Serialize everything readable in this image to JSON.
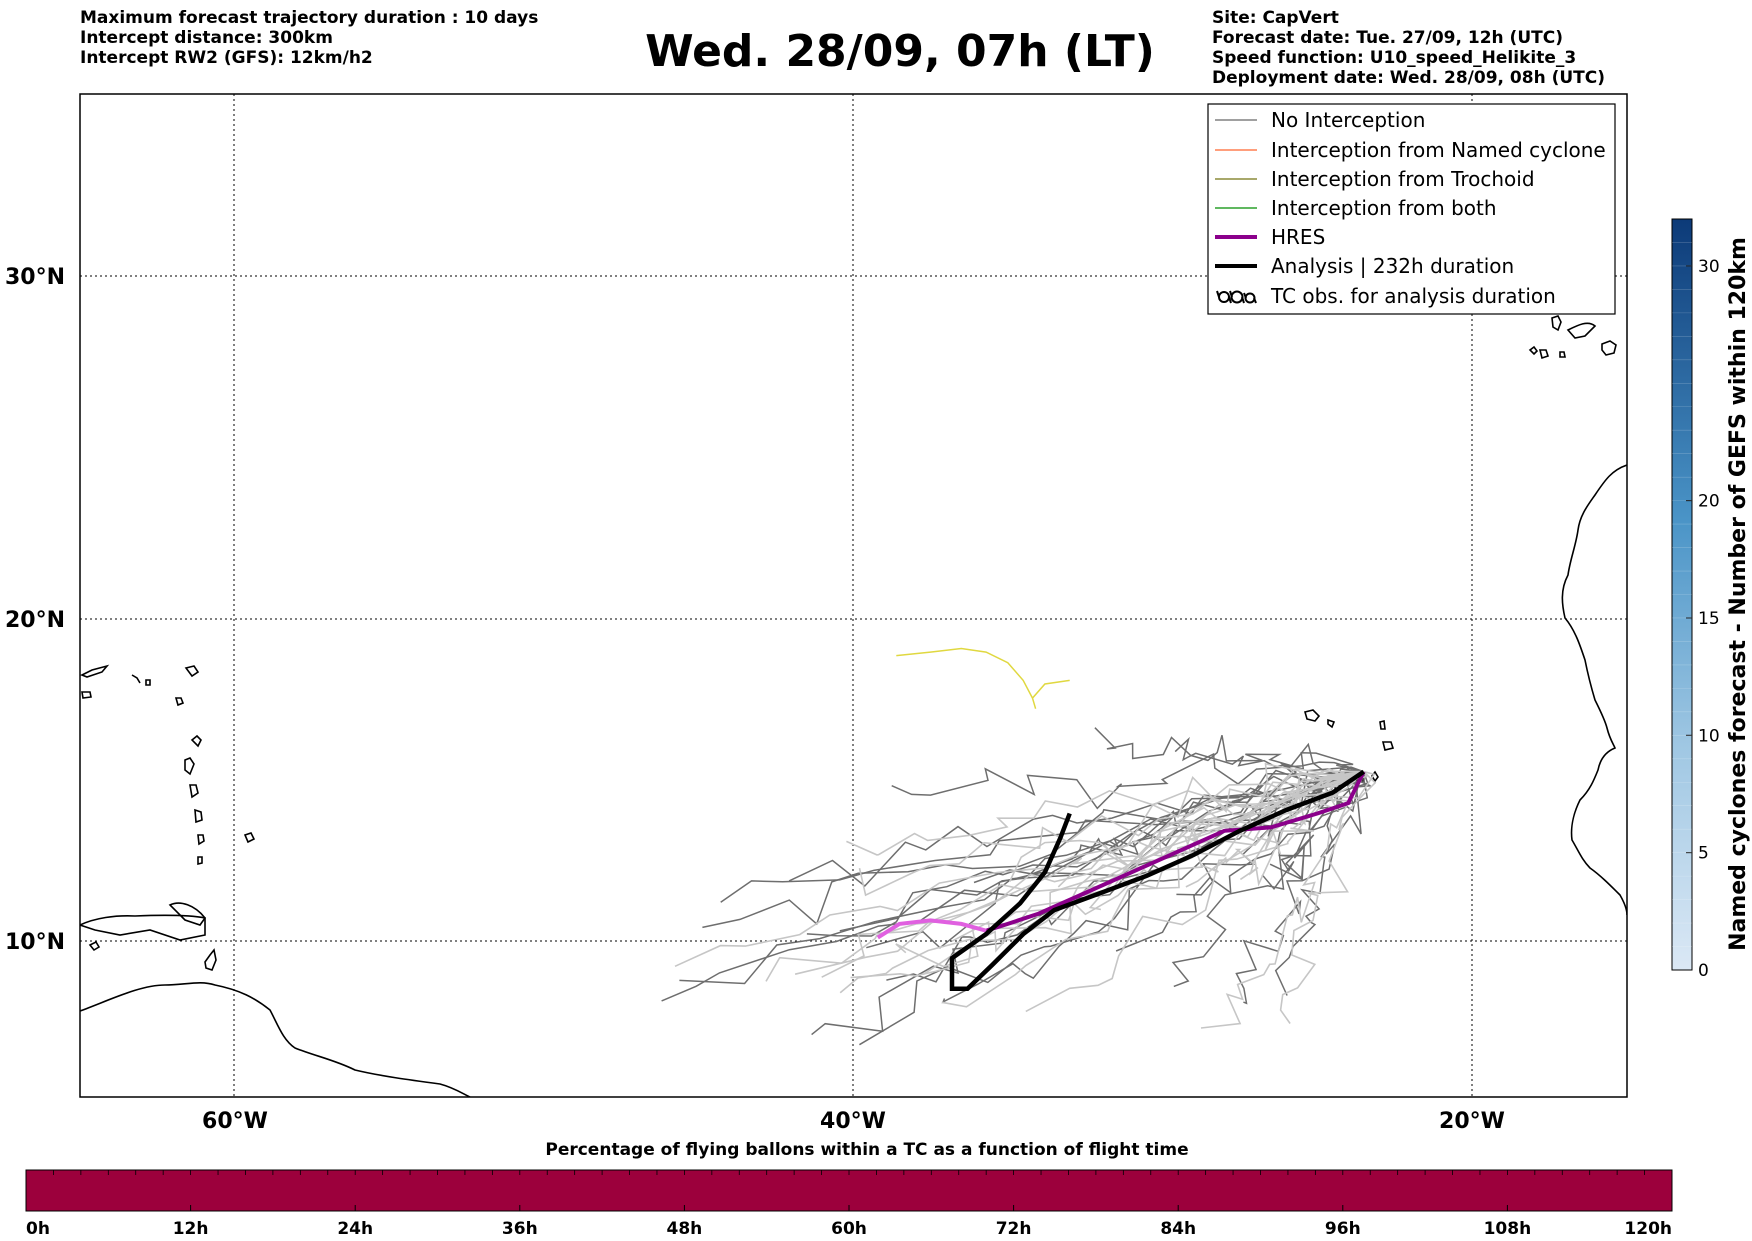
{
  "header_left": [
    "Maximum forecast trajectory duration : 10 days",
    "Intercept distance: 300km",
    "Intercept RW2 (GFS):  12km/h2"
  ],
  "title": "Wed. 28/09, 07h (LT)",
  "header_right": [
    "Site: CapVert",
    "Forecast date: Tue. 27/09, 12h (UTC)",
    "Speed function: U10_speed_Helikite_3",
    "Deployment date: Wed. 28/09, 08h (UTC)"
  ],
  "map": {
    "lon_range": [
      -65,
      -15
    ],
    "lat_range": [
      5.4,
      34.7
    ],
    "lon_ticks": [
      "60°W",
      "40°W",
      "20°W"
    ],
    "lat_ticks": [
      "30°N",
      "20°N",
      "10°N"
    ],
    "grid": "dotted"
  },
  "legend": {
    "placement": "top-right",
    "items": [
      {
        "label": "No Interception",
        "color": "#808080"
      },
      {
        "label": "Interception from Named cyclone",
        "color": "#ff7f50"
      },
      {
        "label": "Interception from Trochoid",
        "color": "#8b8b3a"
      },
      {
        "label": "Interception from both",
        "color": "#2ca02c"
      },
      {
        "label": "HRES",
        "color": "#8b008b"
      },
      {
        "label": "Analysis | 232h duration",
        "color": "#000000"
      },
      {
        "label": "TC obs. for analysis duration",
        "color": "#000000",
        "icon": "cyclone-symbols-icon"
      }
    ]
  },
  "colorbar_right": {
    "label": "Named cyclones forecast - Number of GEFS within 120km",
    "ticks": [
      "0",
      "5",
      "10",
      "15",
      "20",
      "30"
    ],
    "range": [
      0,
      32
    ]
  },
  "colorbar_bottom": {
    "label": "Percentage of flying ballons within a TC as a function of flight time",
    "ticks": [
      "0h",
      "12h",
      "24h",
      "36h",
      "48h",
      "60h",
      "72h",
      "84h",
      "96h",
      "108h",
      "120h"
    ],
    "fill_color": "#9c003c"
  },
  "tracks": {
    "launch_site": {
      "lon": -23.5,
      "lat": 14.9
    },
    "hres": [
      [
        -23.5,
        14.9
      ],
      [
        -24.0,
        14.0
      ],
      [
        -25.0,
        13.7
      ],
      [
        -26.5,
        13.3
      ],
      [
        -28.0,
        13.2
      ],
      [
        -29.5,
        12.6
      ],
      [
        -31.0,
        12.0
      ],
      [
        -32.5,
        11.4
      ],
      [
        -34.0,
        10.8
      ],
      [
        -35.0,
        10.5
      ],
      [
        -35.7,
        10.3
      ],
      [
        -36.5,
        10.5
      ],
      [
        -37.5,
        10.6
      ],
      [
        -38.5,
        10.5
      ],
      [
        -39.2,
        10.1
      ]
    ],
    "analysis": [
      [
        -23.5,
        14.9
      ],
      [
        -24.5,
        14.3
      ],
      [
        -26.0,
        13.8
      ],
      [
        -27.5,
        13.2
      ],
      [
        -29.0,
        12.5
      ],
      [
        -30.5,
        11.9
      ],
      [
        -32.0,
        11.4
      ],
      [
        -33.5,
        10.9
      ],
      [
        -34.5,
        10.2
      ],
      [
        -35.5,
        9.3
      ],
      [
        -36.3,
        8.6
      ],
      [
        -36.8,
        8.6
      ],
      [
        -36.8,
        9.5
      ],
      [
        -35.7,
        10.2
      ],
      [
        -34.6,
        11.1
      ],
      [
        -33.8,
        12.0
      ],
      [
        -33.3,
        13.0
      ],
      [
        -33.0,
        13.7
      ]
    ],
    "yellow": [
      [
        -38.6,
        18.2
      ],
      [
        -37.5,
        18.3
      ],
      [
        -36.5,
        18.4
      ],
      [
        -35.7,
        18.3
      ],
      [
        -35.0,
        18.0
      ],
      [
        -34.5,
        17.5
      ],
      [
        -34.2,
        17.0
      ],
      [
        -34.1,
        16.7
      ],
      [
        -34.2,
        17.0
      ],
      [
        -33.8,
        17.4
      ],
      [
        -33.0,
        17.5
      ]
    ]
  }
}
